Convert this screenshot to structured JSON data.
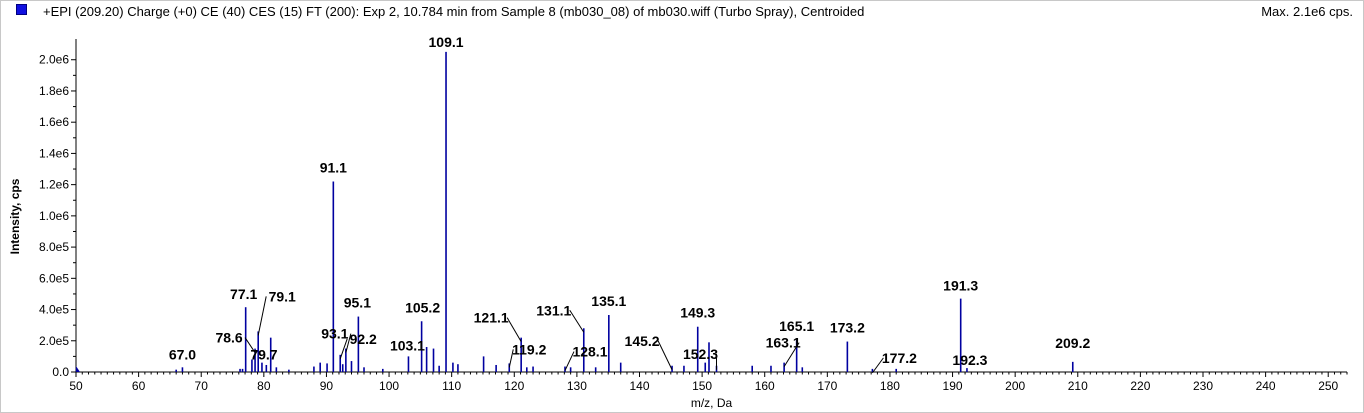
{
  "header": {
    "title": "+EPI (209.20) Charge (+0) CE (40) CES (15) FT (200): Exp 2, 10.784 min from Sample 8 (mb030_08) of mb030.wiff (Turbo Spray), Centroided",
    "max_label": "Max. 2.1e6 cps."
  },
  "colors": {
    "series": "#0000a0",
    "swatch": "#1010e0",
    "axis": "#000000"
  },
  "chart_data": {
    "type": "bar",
    "title": "+EPI (209.20) Charge (+0) CE (40) CES (15) FT (200): Exp 2, 10.784 min from Sample 8 (mb030_08) of mb030.wiff (Turbo Spray), Centroided",
    "xlabel": "m/z, Da",
    "ylabel": "Intensity, cps",
    "xlim": [
      50,
      253
    ],
    "ylim": [
      0,
      2120000.0
    ],
    "x_ticks": [
      50,
      60,
      70,
      80,
      90,
      100,
      110,
      120,
      130,
      140,
      150,
      160,
      170,
      180,
      190,
      200,
      210,
      220,
      230,
      240,
      250
    ],
    "x_tick_labels": [
      "50",
      "60",
      "70",
      "80",
      "90",
      "100",
      "110",
      "120",
      "130",
      "140",
      "150",
      "160",
      "170",
      "180",
      "190",
      "200",
      "210",
      "220",
      "230",
      "240",
      "250"
    ],
    "y_ticks": [
      0,
      200000,
      400000,
      600000,
      800000,
      1000000,
      1200000,
      1400000,
      1600000,
      1800000,
      2000000
    ],
    "y_tick_labels": [
      "0.0",
      "2.0e5",
      "4.0e5",
      "6.0e5",
      "8.0e5",
      "1.0e6",
      "1.2e6",
      "1.4e6",
      "1.6e6",
      "1.8e6",
      "2.0e6"
    ],
    "grid": false,
    "peaks": [
      {
        "mz": 50.1,
        "intensity": 25000
      },
      {
        "mz": 66.0,
        "intensity": 15000
      },
      {
        "mz": 67.0,
        "intensity": 30000
      },
      {
        "mz": 76.2,
        "intensity": 20000
      },
      {
        "mz": 76.6,
        "intensity": 20000
      },
      {
        "mz": 77.1,
        "intensity": 415000
      },
      {
        "mz": 78.1,
        "intensity": 80000
      },
      {
        "mz": 78.6,
        "intensity": 150000
      },
      {
        "mz": 79.1,
        "intensity": 260000
      },
      {
        "mz": 79.7,
        "intensity": 60000
      },
      {
        "mz": 80.4,
        "intensity": 45000
      },
      {
        "mz": 81.1,
        "intensity": 220000
      },
      {
        "mz": 82.0,
        "intensity": 30000
      },
      {
        "mz": 84.0,
        "intensity": 15000
      },
      {
        "mz": 88.0,
        "intensity": 35000
      },
      {
        "mz": 89.0,
        "intensity": 60000
      },
      {
        "mz": 90.1,
        "intensity": 55000
      },
      {
        "mz": 91.1,
        "intensity": 1220000
      },
      {
        "mz": 92.2,
        "intensity": 110000
      },
      {
        "mz": 92.6,
        "intensity": 50000
      },
      {
        "mz": 93.1,
        "intensity": 150000
      },
      {
        "mz": 94.0,
        "intensity": 70000
      },
      {
        "mz": 95.1,
        "intensity": 355000
      },
      {
        "mz": 96.0,
        "intensity": 30000
      },
      {
        "mz": 99.0,
        "intensity": 20000
      },
      {
        "mz": 103.1,
        "intensity": 100000
      },
      {
        "mz": 105.2,
        "intensity": 325000
      },
      {
        "mz": 106.0,
        "intensity": 160000
      },
      {
        "mz": 107.1,
        "intensity": 150000
      },
      {
        "mz": 108.0,
        "intensity": 40000
      },
      {
        "mz": 109.1,
        "intensity": 2050000
      },
      {
        "mz": 110.2,
        "intensity": 60000
      },
      {
        "mz": 111.0,
        "intensity": 50000
      },
      {
        "mz": 115.1,
        "intensity": 100000
      },
      {
        "mz": 117.1,
        "intensity": 45000
      },
      {
        "mz": 119.2,
        "intensity": 55000
      },
      {
        "mz": 121.1,
        "intensity": 220000
      },
      {
        "mz": 122.0,
        "intensity": 30000
      },
      {
        "mz": 123.0,
        "intensity": 35000
      },
      {
        "mz": 128.1,
        "intensity": 35000
      },
      {
        "mz": 129.0,
        "intensity": 30000
      },
      {
        "mz": 131.1,
        "intensity": 280000
      },
      {
        "mz": 133.0,
        "intensity": 30000
      },
      {
        "mz": 135.1,
        "intensity": 365000
      },
      {
        "mz": 137.0,
        "intensity": 60000
      },
      {
        "mz": 145.2,
        "intensity": 40000
      },
      {
        "mz": 147.1,
        "intensity": 40000
      },
      {
        "mz": 149.3,
        "intensity": 290000
      },
      {
        "mz": 150.5,
        "intensity": 60000
      },
      {
        "mz": 151.1,
        "intensity": 190000
      },
      {
        "mz": 152.3,
        "intensity": 40000
      },
      {
        "mz": 158.0,
        "intensity": 40000
      },
      {
        "mz": 161.0,
        "intensity": 40000
      },
      {
        "mz": 163.1,
        "intensity": 60000
      },
      {
        "mz": 165.1,
        "intensity": 205000
      },
      {
        "mz": 166.0,
        "intensity": 30000
      },
      {
        "mz": 173.2,
        "intensity": 195000
      },
      {
        "mz": 177.2,
        "intensity": 20000
      },
      {
        "mz": 181.0,
        "intensity": 20000
      },
      {
        "mz": 191.3,
        "intensity": 470000
      },
      {
        "mz": 192.3,
        "intensity": 25000
      },
      {
        "mz": 209.2,
        "intensity": 65000
      }
    ],
    "annotations": [
      {
        "text": "67.0",
        "mz": 67.0,
        "intensity": 30000
      },
      {
        "text": "77.1",
        "mz": 77.1,
        "intensity": 415000
      },
      {
        "text": "78.6",
        "mz": 78.6,
        "intensity": 150000
      },
      {
        "text": "79.1",
        "mz": 79.1,
        "intensity": 260000
      },
      {
        "text": "79.7",
        "mz": 79.7,
        "intensity": 60000
      },
      {
        "text": "91.1",
        "mz": 91.1,
        "intensity": 1220000
      },
      {
        "text": "93.1",
        "mz": 93.1,
        "intensity": 150000
      },
      {
        "text": "92.2",
        "mz": 92.2,
        "intensity": 110000
      },
      {
        "text": "95.1",
        "mz": 95.1,
        "intensity": 355000
      },
      {
        "text": "103.1",
        "mz": 103.1,
        "intensity": 100000
      },
      {
        "text": "105.2",
        "mz": 105.2,
        "intensity": 325000
      },
      {
        "text": "109.1",
        "mz": 109.1,
        "intensity": 2050000
      },
      {
        "text": "121.1",
        "mz": 121.1,
        "intensity": 220000
      },
      {
        "text": "119.2",
        "mz": 119.2,
        "intensity": 55000
      },
      {
        "text": "131.1",
        "mz": 131.1,
        "intensity": 280000
      },
      {
        "text": "128.1",
        "mz": 128.1,
        "intensity": 35000
      },
      {
        "text": "135.1",
        "mz": 135.1,
        "intensity": 365000
      },
      {
        "text": "145.2",
        "mz": 145.2,
        "intensity": 40000
      },
      {
        "text": "152.3",
        "mz": 152.3,
        "intensity": 40000
      },
      {
        "text": "149.3",
        "mz": 149.3,
        "intensity": 290000
      },
      {
        "text": "163.1",
        "mz": 163.1,
        "intensity": 60000
      },
      {
        "text": "165.1",
        "mz": 165.1,
        "intensity": 205000
      },
      {
        "text": "173.2",
        "mz": 173.2,
        "intensity": 195000
      },
      {
        "text": "177.2",
        "mz": 177.2,
        "intensity": 20000
      },
      {
        "text": "191.3",
        "mz": 191.3,
        "intensity": 470000
      },
      {
        "text": "192.3",
        "mz": 192.3,
        "intensity": 25000
      },
      {
        "text": "209.2",
        "mz": 209.2,
        "intensity": 65000
      }
    ]
  }
}
